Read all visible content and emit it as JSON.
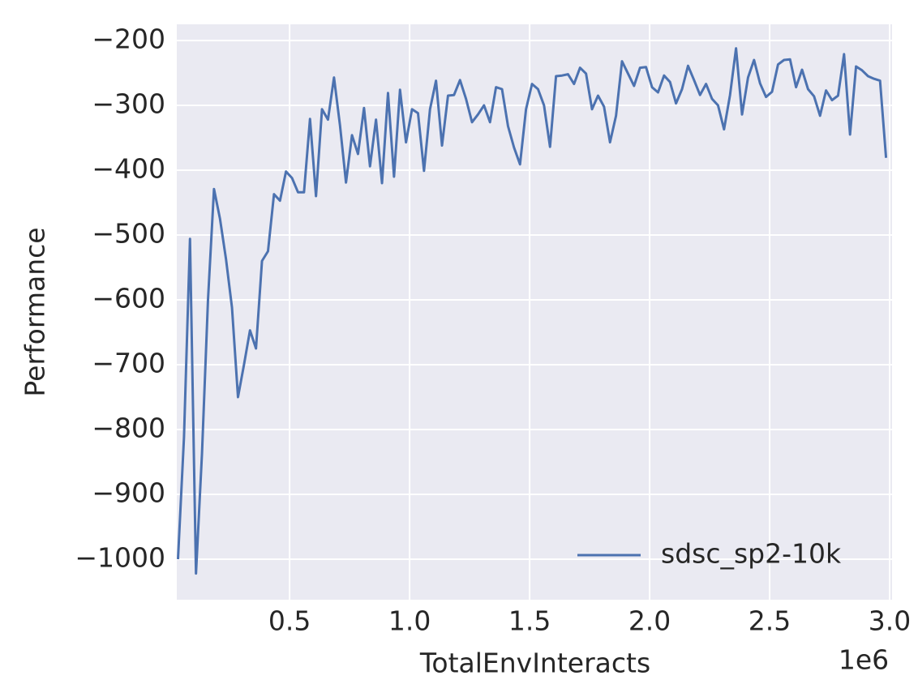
{
  "chart_data": {
    "type": "line",
    "xlabel": "TotalEnvInteracts",
    "ylabel": "Performance",
    "x_offset_label": "1e6",
    "xlim": [
      0.03,
      3.01
    ],
    "ylim": [
      -1062.5,
      -175
    ],
    "xticks": [
      0.5,
      {
        "value": 1,
        "label": "1.0"
      },
      1.5,
      {
        "value": 2,
        "label": "2.0"
      },
      2.5,
      {
        "value": 3,
        "label": "3.0"
      }
    ],
    "yticks": [
      {
        "value": -200,
        "label": "−200"
      },
      {
        "value": -300,
        "label": "−300"
      },
      {
        "value": -400,
        "label": "−400"
      },
      {
        "value": -500,
        "label": "−500"
      },
      {
        "value": -600,
        "label": "−600"
      },
      {
        "value": -700,
        "label": "−700"
      },
      {
        "value": -800,
        "label": "−800"
      },
      {
        "value": -900,
        "label": "−900"
      },
      {
        "value": -1000,
        "label": "−1000"
      }
    ],
    "grid": true,
    "legend": "lower right",
    "x": [
      0.035,
      0.06,
      0.085,
      0.11,
      0.135,
      0.16,
      0.185,
      0.21,
      0.235,
      0.26,
      0.285,
      0.31,
      0.335,
      0.36,
      0.385,
      0.41,
      0.435,
      0.46,
      0.485,
      0.51,
      0.535,
      0.56,
      0.585,
      0.61,
      0.635,
      0.66,
      0.685,
      0.71,
      0.735,
      0.76,
      0.785,
      0.81,
      0.835,
      0.86,
      0.885,
      0.91,
      0.935,
      0.96,
      0.985,
      1.01,
      1.035,
      1.06,
      1.085,
      1.11,
      1.135,
      1.16,
      1.185,
      1.21,
      1.235,
      1.26,
      1.285,
      1.31,
      1.335,
      1.36,
      1.385,
      1.41,
      1.435,
      1.46,
      1.485,
      1.51,
      1.535,
      1.56,
      1.585,
      1.61,
      1.635,
      1.66,
      1.685,
      1.71,
      1.735,
      1.76,
      1.785,
      1.81,
      1.835,
      1.86,
      1.885,
      1.91,
      1.935,
      1.96,
      1.985,
      2.01,
      2.035,
      2.06,
      2.085,
      2.11,
      2.135,
      2.16,
      2.185,
      2.21,
      2.235,
      2.26,
      2.285,
      2.31,
      2.335,
      2.36,
      2.385,
      2.41,
      2.435,
      2.46,
      2.485,
      2.51,
      2.535,
      2.56,
      2.585,
      2.61,
      2.635,
      2.66,
      2.685,
      2.71,
      2.735,
      2.76,
      2.785,
      2.81,
      2.835,
      2.86,
      2.885,
      2.91,
      2.935,
      2.96,
      2.985
    ],
    "series": [
      {
        "name": "sdsc_sp2-10k",
        "color": "#4c72b0",
        "values": [
          -1000,
          -812,
          -506,
          -1022,
          -837,
          -600,
          -429,
          -475,
          -537,
          -612,
          -750,
          -700,
          -647,
          -675,
          -540,
          -525,
          -437,
          -447,
          -402,
          -412,
          -434,
          -434,
          -321,
          -440,
          -306,
          -322,
          -257,
          -331,
          -419,
          -346,
          -375,
          -304,
          -394,
          -322,
          -420,
          -281,
          -410,
          -276,
          -357,
          -306,
          -312,
          -401,
          -306,
          -262,
          -362,
          -285,
          -284,
          -261,
          -290,
          -326,
          -314,
          -300,
          -326,
          -272,
          -275,
          -332,
          -365,
          -391,
          -306,
          -267,
          -275,
          -300,
          -364,
          -255,
          -254,
          -252,
          -267,
          -242,
          -251,
          -306,
          -285,
          -302,
          -357,
          -316,
          -232,
          -251,
          -270,
          -242,
          -241,
          -272,
          -280,
          -254,
          -264,
          -297,
          -275,
          -239,
          -261,
          -284,
          -267,
          -290,
          -300,
          -337,
          -284,
          -212,
          -314,
          -257,
          -230,
          -266,
          -287,
          -279,
          -237,
          -230,
          -229,
          -272,
          -245,
          -275,
          -286,
          -316,
          -277,
          -292,
          -285,
          -221,
          -345,
          -240,
          -246,
          -255,
          -259,
          -262,
          -381
        ]
      }
    ]
  }
}
